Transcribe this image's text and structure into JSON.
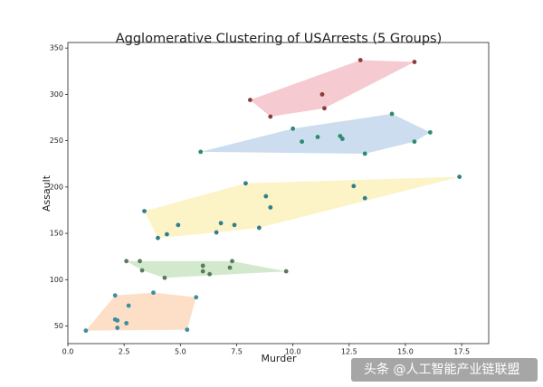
{
  "chart_data": {
    "type": "scatter-hull",
    "title": "Agglomerative Clustering of USArrests (5 Groups)",
    "x_label": "Murder",
    "y_label": "Assault",
    "xlim": [
      0,
      18.7
    ],
    "ylim": [
      31,
      356
    ],
    "xticks": [
      {
        "value": 0,
        "label": "0.0"
      },
      2.5,
      {
        "value": 5,
        "label": "5.0"
      },
      7.5,
      {
        "value": 10,
        "label": "10.0"
      },
      12.5,
      {
        "value": 15,
        "label": "15.0"
      },
      17.5
    ],
    "yticks": [
      50,
      100,
      150,
      200,
      250,
      300,
      350
    ],
    "series": [
      {
        "color": "#f2b8c0",
        "marker_color": "#8c3b3b",
        "x": [
          13.0,
          15.4,
          11.3,
          8.1,
          11.4,
          9.0
        ],
        "y": [
          337,
          335,
          300,
          294,
          285,
          276
        ]
      },
      {
        "color": "#b9d1e8",
        "marker_color": "#2e8b6e",
        "x": [
          13.2,
          10.0,
          5.9,
          10.4,
          15.4,
          12.1,
          16.1,
          12.2,
          11.1,
          14.4
        ],
        "y": [
          236,
          263,
          238,
          249,
          249,
          255,
          259,
          252,
          254,
          279
        ]
      },
      {
        "color": "#fbefb3",
        "marker_color": "#2f7f8f",
        "x": [
          17.4,
          8.8,
          7.9,
          9.0,
          13.2,
          12.7,
          8.5,
          6.8,
          3.4,
          4.9,
          6.6,
          4.4,
          7.4,
          4.0
        ],
        "y": [
          211,
          190,
          204,
          178,
          188,
          201,
          156,
          161,
          174,
          159,
          151,
          149,
          159,
          145
        ]
      },
      {
        "color": "#c3e2bd",
        "marker_color": "#5a7a5e",
        "x": [
          3.3,
          7.2,
          6.0,
          9.7,
          6.0,
          4.3,
          7.3,
          6.3,
          3.2,
          2.6
        ],
        "y": [
          110,
          113,
          115,
          109,
          109,
          102,
          120,
          106,
          120,
          120
        ]
      },
      {
        "color": "#fcd3b3",
        "marker_color": "#3a8fa0",
        "x": [
          5.3,
          2.2,
          2.1,
          2.7,
          2.1,
          0.8,
          3.8,
          2.2,
          5.7,
          2.6
        ],
        "y": [
          46,
          56,
          83,
          72,
          57,
          45,
          86,
          48,
          81,
          53
        ]
      }
    ],
    "watermark": "头条 @人工智能产业链联盟"
  }
}
